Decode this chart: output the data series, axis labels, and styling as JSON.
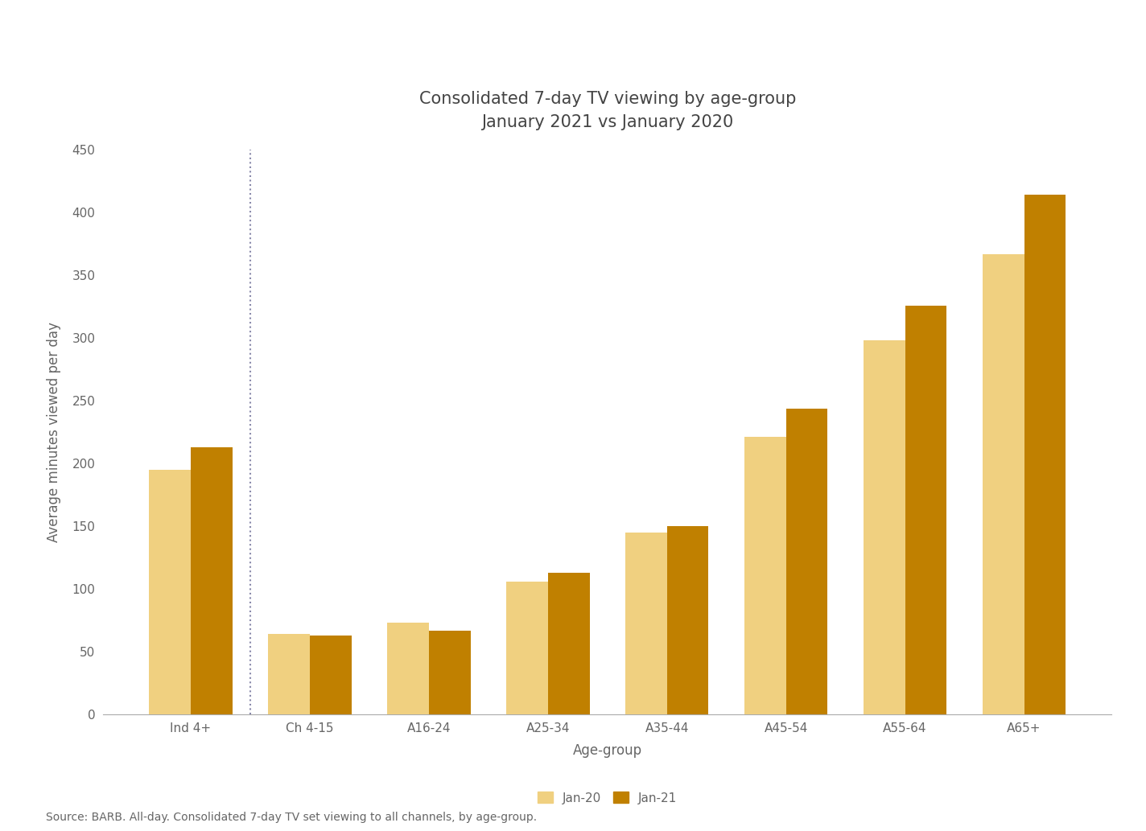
{
  "title_line1": "Consolidated 7-day TV viewing by age-group",
  "title_line2": "January 2021 vs January 2020",
  "categories": [
    "Ind 4+",
    "Ch 4-15",
    "A16-24",
    "A25-34",
    "A35-44",
    "A45-54",
    "A55-64",
    "A65+"
  ],
  "jan20_values": [
    195,
    64,
    73,
    106,
    145,
    221,
    298,
    367
  ],
  "jan21_values": [
    213,
    63,
    67,
    113,
    150,
    244,
    326,
    414
  ],
  "color_jan20": "#F0D080",
  "color_jan21": "#C08000",
  "xlabel": "Age-group",
  "ylabel": "Average minutes viewed per day",
  "ylim": [
    0,
    450
  ],
  "yticks": [
    0,
    50,
    100,
    150,
    200,
    250,
    300,
    350,
    400,
    450
  ],
  "legend_labels": [
    "Jan-20",
    "Jan-21"
  ],
  "source_text": "Source: BARB. All-day. Consolidated 7-day TV set viewing to all channels, by age-group.",
  "bar_width": 0.35,
  "background_color": "#FFFFFF",
  "title_fontsize": 15,
  "axis_label_fontsize": 12,
  "tick_fontsize": 11,
  "source_fontsize": 10,
  "dotted_line_color": "#8888AA"
}
